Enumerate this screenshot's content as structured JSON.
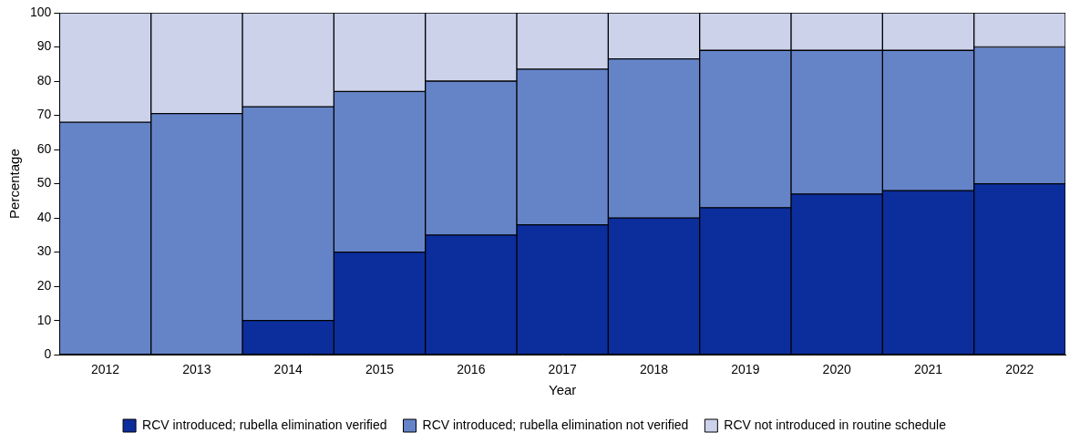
{
  "chart_data": {
    "type": "bar",
    "stacked": true,
    "grid": false,
    "legend": "bottom",
    "x_label": "Year",
    "y_label": "Percentage",
    "categories": [
      "2012",
      "2013",
      "2014",
      "2015",
      "2016",
      "2017",
      "2018",
      "2019",
      "2020",
      "2021",
      "2022"
    ],
    "series": [
      {
        "name": "RCV introduced; rubella elimination verified",
        "color": "#0b2e9c",
        "values": [
          0,
          0,
          10,
          30,
          35,
          38,
          40,
          43,
          47,
          48,
          50
        ]
      },
      {
        "name": "RCV introduced; rubella elimination not verified",
        "color": "#6584c8",
        "values": [
          68,
          70.5,
          62.5,
          47,
          45,
          45.5,
          46.5,
          46,
          42,
          41,
          40
        ]
      },
      {
        "name": "RCV not introduced in routine schedule",
        "color": "#cbd2ea",
        "values": [
          32,
          29.5,
          27.5,
          23,
          20,
          16.5,
          13.5,
          11,
          11,
          11,
          10
        ]
      }
    ],
    "ylim": [
      0,
      100
    ],
    "yticks": [
      0,
      10,
      20,
      30,
      40,
      50,
      60,
      70,
      80,
      90,
      100
    ]
  }
}
